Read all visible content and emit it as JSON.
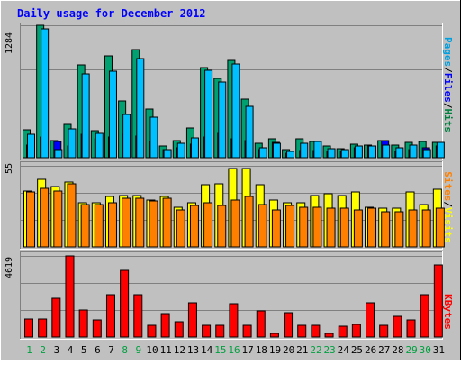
{
  "chart_data": [
    {
      "type": "bar",
      "title": "Daily usage for December 2012",
      "max_label": "1284",
      "side_legend": [
        {
          "label": "Pages",
          "color": "#00a0e0"
        },
        {
          "label": "Files",
          "color": "#0000ff"
        },
        {
          "label": "Hits",
          "color": "#008040"
        }
      ],
      "categories": [
        "1",
        "2",
        "3",
        "4",
        "5",
        "6",
        "7",
        "8",
        "9",
        "10",
        "11",
        "12",
        "13",
        "14",
        "15",
        "16",
        "17",
        "18",
        "19",
        "20",
        "21",
        "22",
        "23",
        "24",
        "25",
        "26",
        "27",
        "28",
        "29",
        "30",
        "31"
      ],
      "weekend_days": [
        "1",
        "2",
        "8",
        "9",
        "15",
        "16",
        "22",
        "23",
        "29",
        "30"
      ],
      "ylim": [
        0,
        1284
      ],
      "series": [
        {
          "name": "Hits",
          "color": "#00a070",
          "values": [
            270,
            1284,
            170,
            320,
            900,
            260,
            990,
            550,
            1050,
            470,
            110,
            170,
            290,
            870,
            770,
            940,
            570,
            140,
            180,
            80,
            180,
            160,
            110,
            90,
            130,
            120,
            170,
            120,
            150,
            160,
            150
          ]
        },
        {
          "name": "Files",
          "color": "#0000ff",
          "values": [
            120,
            200,
            160,
            110,
            230,
            180,
            200,
            230,
            210,
            160,
            80,
            100,
            130,
            200,
            240,
            180,
            170,
            80,
            150,
            40,
            70,
            70,
            60,
            60,
            100,
            110,
            170,
            60,
            80,
            100,
            110
          ]
        },
        {
          "name": "Pages",
          "color": "#00c0ff",
          "values": [
            230,
            1250,
            80,
            280,
            810,
            240,
            840,
            420,
            960,
            390,
            80,
            140,
            190,
            850,
            730,
            910,
            500,
            100,
            140,
            60,
            140,
            160,
            90,
            80,
            110,
            110,
            120,
            100,
            120,
            80,
            150
          ]
        }
      ]
    },
    {
      "type": "bar",
      "max_label": "55",
      "side_legend": [
        {
          "label": "Sites",
          "color": "#ff8000"
        },
        {
          "label": "Visits",
          "color": "#ffff00"
        }
      ],
      "categories": [
        "1",
        "2",
        "3",
        "4",
        "5",
        "6",
        "7",
        "8",
        "9",
        "10",
        "11",
        "12",
        "13",
        "14",
        "15",
        "16",
        "17",
        "18",
        "19",
        "20",
        "21",
        "22",
        "23",
        "24",
        "25",
        "26",
        "27",
        "28",
        "29",
        "30",
        "31"
      ],
      "ylim": [
        0,
        55
      ],
      "series": [
        {
          "name": "Visits",
          "color": "#ffff00",
          "values": [
            38,
            46,
            41,
            44,
            30,
            30,
            34,
            35,
            35,
            32,
            34,
            27,
            30,
            42,
            43,
            53,
            53,
            42,
            32,
            30,
            30,
            35,
            36,
            35,
            37,
            27,
            26,
            26,
            37,
            29,
            39
          ]
        },
        {
          "name": "Sites",
          "color": "#ff8000",
          "values": [
            37,
            40,
            38,
            43,
            29,
            29,
            30,
            33,
            33,
            31,
            33,
            25,
            28,
            30,
            28,
            32,
            34,
            29,
            25,
            28,
            27,
            27,
            26,
            26,
            25,
            26,
            24,
            24,
            25,
            25,
            26
          ]
        }
      ]
    },
    {
      "type": "bar",
      "max_label": "4619",
      "side_legend": [
        {
          "label": "KBytes",
          "color": "#ff0000"
        }
      ],
      "categories": [
        "1",
        "2",
        "3",
        "4",
        "5",
        "6",
        "7",
        "8",
        "9",
        "10",
        "11",
        "12",
        "13",
        "14",
        "15",
        "16",
        "17",
        "18",
        "19",
        "20",
        "21",
        "22",
        "23",
        "24",
        "25",
        "26",
        "27",
        "28",
        "29",
        "30",
        "31"
      ],
      "ylim": [
        0,
        4619
      ],
      "series": [
        {
          "name": "KBytes",
          "color": "#ff0000",
          "values": [
            1030,
            1030,
            2200,
            4619,
            1550,
            950,
            2420,
            3780,
            2420,
            690,
            1350,
            870,
            1930,
            690,
            690,
            1880,
            690,
            1500,
            190,
            1400,
            690,
            690,
            190,
            600,
            730,
            1930,
            690,
            1200,
            960,
            2420,
            4110
          ]
        }
      ]
    }
  ]
}
